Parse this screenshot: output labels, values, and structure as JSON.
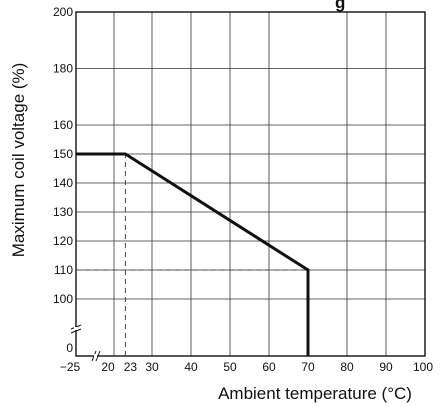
{
  "chart_data": {
    "type": "line",
    "title_fragment": "g",
    "xlabel": "Ambient temperature (°C)",
    "ylabel": "Maximum coil voltage (%)",
    "x_tick_labels": [
      "−25",
      "20",
      "23",
      "30",
      "40",
      "50",
      "60",
      "70",
      "80",
      "90",
      "100"
    ],
    "y_tick_labels": [
      "0",
      "100",
      "110",
      "120",
      "130",
      "140",
      "150",
      "160",
      "180",
      "200"
    ],
    "xlim": [
      -25,
      100
    ],
    "ylim": [
      0,
      200
    ],
    "axis_break": "true",
    "grid": "true",
    "series": [
      {
        "x": [
          -25,
          23,
          70,
          70
        ],
        "y": [
          150,
          150,
          110,
          0
        ]
      }
    ],
    "reference_lines": [
      {
        "x": [
          23,
          23
        ],
        "y": [
          0,
          150
        ]
      },
      {
        "x": [
          -25,
          70
        ],
        "y": [
          110,
          110
        ]
      }
    ],
    "colors": {
      "line": "#111111",
      "grid": "#333333",
      "dashed": "#444444"
    }
  }
}
